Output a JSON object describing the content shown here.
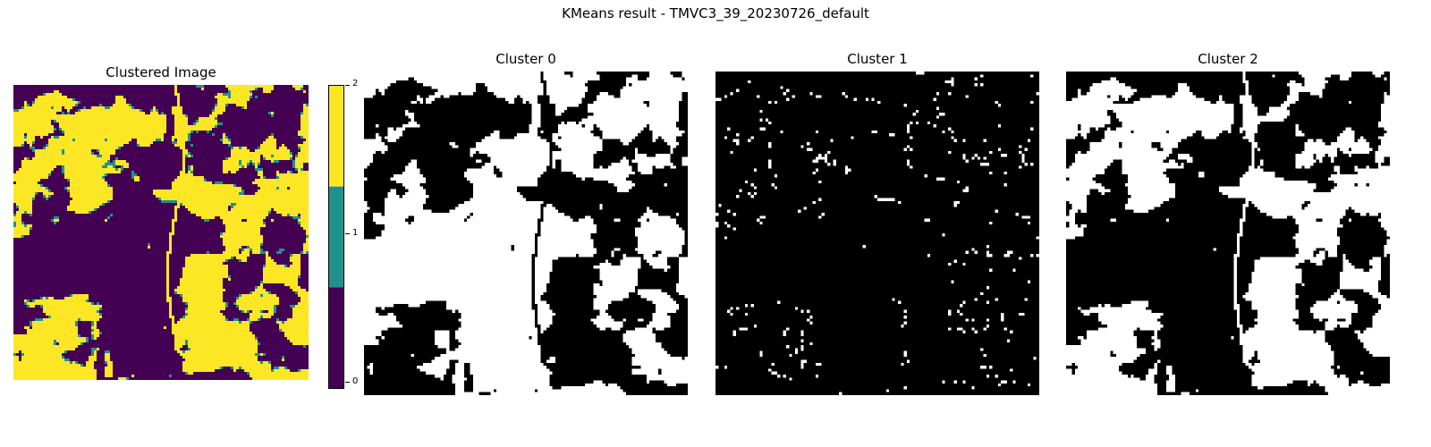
{
  "suptitle": "KMeans result - TMVC3_39_20230726_default",
  "colors": {
    "cluster_0": "#440154",
    "cluster_1": "#21918c",
    "cluster_2": "#fde725",
    "mask_on": "#ffffff",
    "mask_off": "#000000"
  },
  "chart_data": [
    {
      "type": "heatmap",
      "title": "Clustered Image",
      "colormap": "viridis (3 discrete levels)",
      "colorbar": {
        "ticks": [
          "0",
          "1",
          "2"
        ],
        "range": [
          0,
          2
        ]
      },
      "approx_cluster_share": {
        "0": 0.55,
        "1": 0.03,
        "2": 0.42
      }
    },
    {
      "type": "heatmap",
      "title": "Cluster 0",
      "mask_of_cluster": 0,
      "approx_white_fraction": 0.55
    },
    {
      "type": "heatmap",
      "title": "Cluster 1",
      "mask_of_cluster": 1,
      "approx_white_fraction": 0.03
    },
    {
      "type": "heatmap",
      "title": "Cluster 2",
      "mask_of_cluster": 2,
      "approx_white_fraction": 0.42
    }
  ]
}
